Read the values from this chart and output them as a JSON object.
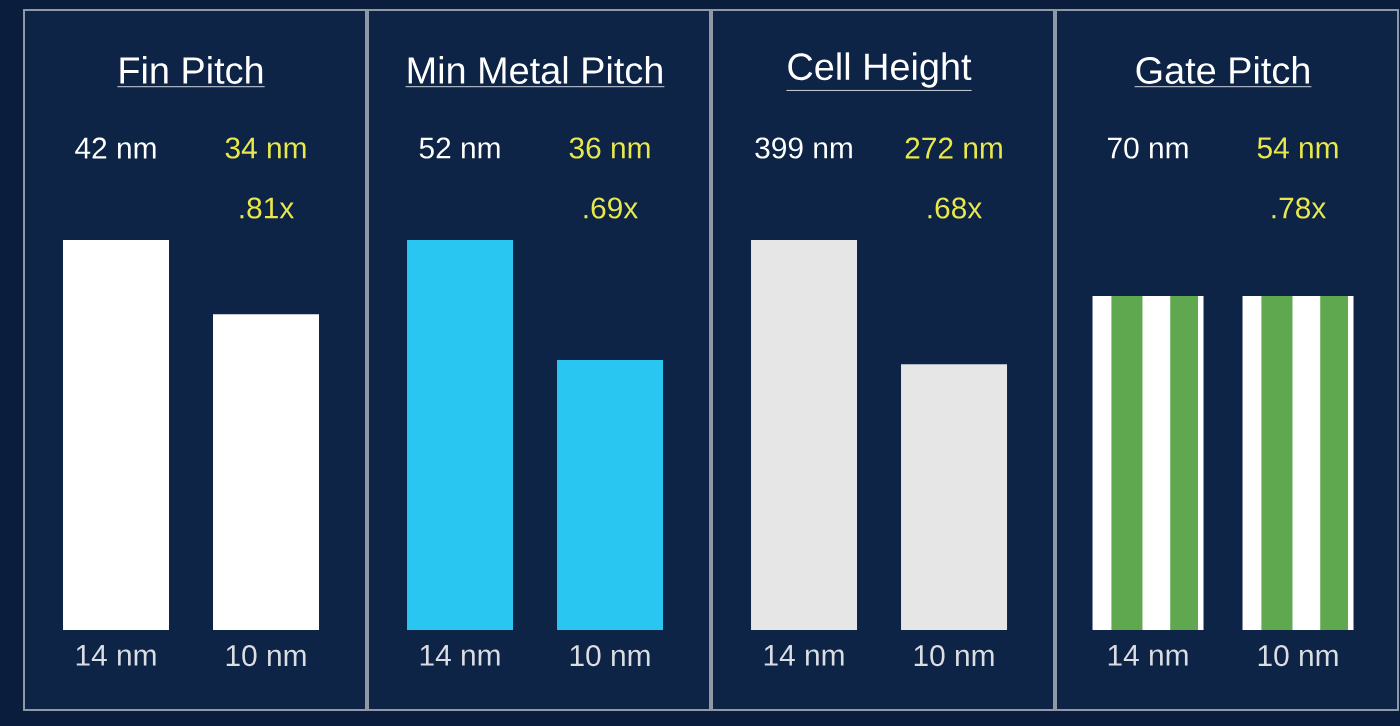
{
  "chart_data": [
    {
      "type": "bar",
      "title": "Fin Pitch",
      "categories": [
        "14 nm",
        "10 nm"
      ],
      "values": [
        42,
        34
      ],
      "colors": [
        "#ffffff",
        "#ffffff"
      ],
      "value_labels": [
        "42 nm",
        "34 nm"
      ],
      "annotations": [
        ".81x"
      ]
    },
    {
      "type": "bar",
      "title": "Min Metal Pitch",
      "categories": [
        "14 nm",
        "10 nm"
      ],
      "values": [
        52,
        36
      ],
      "colors": [
        "#29c6f2",
        "#29c6f2"
      ],
      "value_labels": [
        "52 nm",
        "36 nm"
      ],
      "annotations": [
        ".69x"
      ]
    },
    {
      "type": "bar",
      "title": "Cell Height",
      "categories": [
        "14 nm",
        "10 nm"
      ],
      "values": [
        399,
        272
      ],
      "colors": [
        "#e6e6e6",
        "#e6e6e6"
      ],
      "value_labels": [
        "399 nm",
        "272 nm"
      ],
      "annotations": [
        ".68x"
      ]
    },
    {
      "type": "other",
      "title": "Gate Pitch",
      "categories": [
        "14 nm",
        "10 nm"
      ],
      "values": [
        70,
        54
      ],
      "value_labels": [
        "70 nm",
        "54 nm"
      ],
      "annotations": [
        ".78x"
      ]
    }
  ]
}
